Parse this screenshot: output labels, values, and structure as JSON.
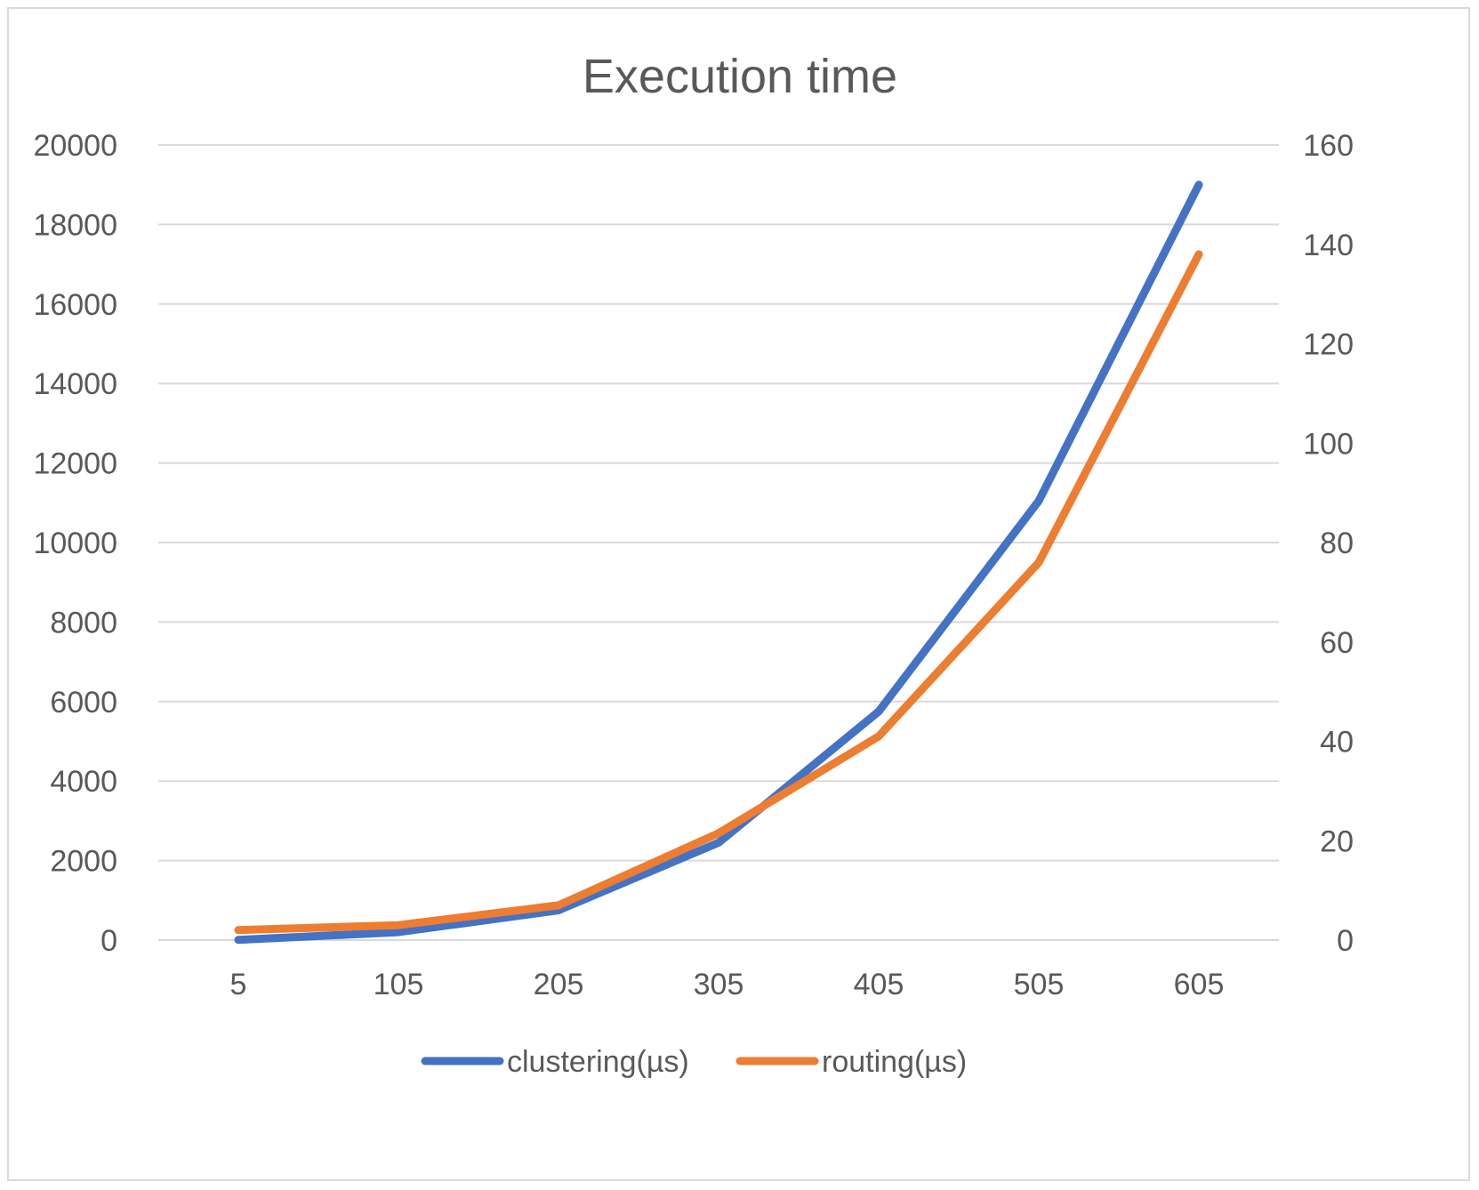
{
  "chart_data": {
    "type": "line",
    "title": "Execution time",
    "xlabel": "",
    "ylabel": "",
    "categories": [
      "5",
      "105",
      "205",
      "305",
      "405",
      "505",
      "605"
    ],
    "y_left": {
      "lim": [
        0,
        20000
      ],
      "ticks": [
        0,
        2000,
        4000,
        6000,
        8000,
        10000,
        12000,
        14000,
        16000,
        18000,
        20000
      ]
    },
    "y_right": {
      "lim": [
        0,
        160
      ],
      "ticks": [
        0,
        20,
        40,
        60,
        80,
        100,
        120,
        140,
        160
      ]
    },
    "grid": true,
    "legend_position": "bottom",
    "series": [
      {
        "name": "clustering(µs)",
        "axis": "left",
        "color": "#4472c4",
        "values": [
          5,
          200,
          750,
          2450,
          5750,
          11050,
          19000
        ]
      },
      {
        "name": "routing(µs)",
        "axis": "right",
        "color": "#ed7d31",
        "values": [
          2,
          3,
          7,
          21.5,
          41,
          76,
          138
        ]
      }
    ]
  }
}
